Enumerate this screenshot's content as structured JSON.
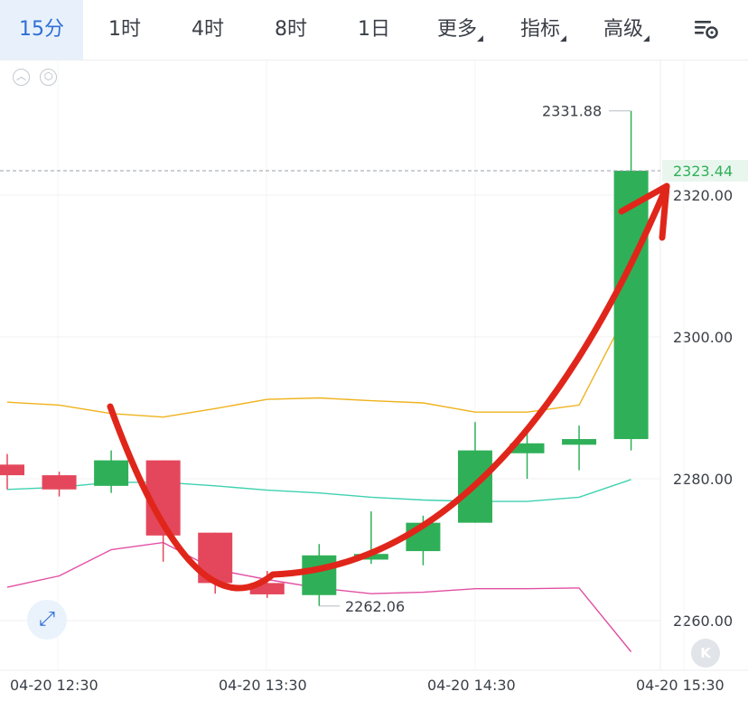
{
  "tabs": [
    {
      "label": "15分",
      "active": true
    },
    {
      "label": "1时"
    },
    {
      "label": "4时"
    },
    {
      "label": "8时"
    },
    {
      "label": "1日"
    },
    {
      "label": "更多",
      "dropdown": true
    },
    {
      "label": "指标",
      "dropdown": true
    },
    {
      "label": "高级",
      "dropdown": true
    }
  ],
  "icons": {
    "settings": "chart-settings-icon",
    "collapse": "collapse-up-icon",
    "indicator_settings": "indicator-gear-icon",
    "expand": "expand-arrows-icon",
    "back_to_latest": "back-to-latest-icon",
    "back_to_latest_glyph": "K"
  },
  "colors": {
    "up": "#2fb058",
    "down": "#e4475c",
    "ma_upper": "#efb21c",
    "ma_middle": "#3fd1b0",
    "ma_lower": "#e14fa3",
    "annotation_arrow": "#e0261a",
    "current_price": "#2fb058",
    "accent": "#2f6fd6"
  },
  "chart_data": {
    "type": "candlestick",
    "interval": "15分",
    "y_axis": {
      "ticks": [
        "2260.00",
        "2280.00",
        "2300.00",
        "2320.00"
      ],
      "range": [
        2255,
        2346
      ]
    },
    "x_axis": {
      "tick_labels": [
        "04-20 12:30",
        "04-20 13:30",
        "04-20 14:30",
        "04-20 15:30"
      ]
    },
    "current_price": "2323.44",
    "annotations": {
      "high": "2331.88",
      "low": "2262.06"
    },
    "candles": [
      {
        "open": 2282.0,
        "close": 2280.5,
        "high": 2283.5,
        "low": 2278.5
      },
      {
        "open": 2280.5,
        "close": 2278.5,
        "high": 2281.0,
        "low": 2277.5
      },
      {
        "open": 2279.0,
        "close": 2282.6,
        "high": 2284.0,
        "low": 2278.0
      },
      {
        "open": 2282.6,
        "close": 2272.0,
        "high": 2282.6,
        "low": 2268.3
      },
      {
        "open": 2272.4,
        "close": 2265.3,
        "high": 2272.4,
        "low": 2263.8
      },
      {
        "open": 2265.3,
        "close": 2263.7,
        "high": 2267.0,
        "low": 2263.2
      },
      {
        "open": 2263.6,
        "close": 2269.2,
        "high": 2270.8,
        "low": 2262.06
      },
      {
        "open": 2268.6,
        "close": 2269.4,
        "high": 2275.4,
        "low": 2268.0
      },
      {
        "open": 2269.8,
        "close": 2273.8,
        "high": 2274.8,
        "low": 2267.8
      },
      {
        "open": 2273.8,
        "close": 2284.0,
        "high": 2288.0,
        "low": 2273.8
      },
      {
        "open": 2283.6,
        "close": 2285.0,
        "high": 2286.5,
        "low": 2280.0
      },
      {
        "open": 2284.8,
        "close": 2285.6,
        "high": 2287.5,
        "low": 2281.2
      },
      {
        "open": 2285.6,
        "close": 2323.44,
        "high": 2331.88,
        "low": 2284.0
      }
    ],
    "overlays": [
      {
        "color": "#efb21c",
        "values": [
          2290.8,
          2290.4,
          2289.2,
          2288.7,
          2289.9,
          2291.2,
          2291.4,
          2291.0,
          2290.7,
          2289.4,
          2289.4,
          2290.4,
          2304.6
        ]
      },
      {
        "color": "#3fd1b0",
        "values": [
          2278.5,
          2278.8,
          2279.5,
          2279.5,
          2279.0,
          2278.4,
          2278.0,
          2277.4,
          2277.0,
          2276.8,
          2276.8,
          2277.4,
          2279.9
        ]
      },
      {
        "color": "#e14fa3",
        "values": [
          2264.7,
          2266.3,
          2270.0,
          2271.0,
          2267.2,
          2265.8,
          2264.6,
          2263.8,
          2264.0,
          2264.5,
          2264.5,
          2264.6,
          2255.6
        ]
      }
    ]
  }
}
